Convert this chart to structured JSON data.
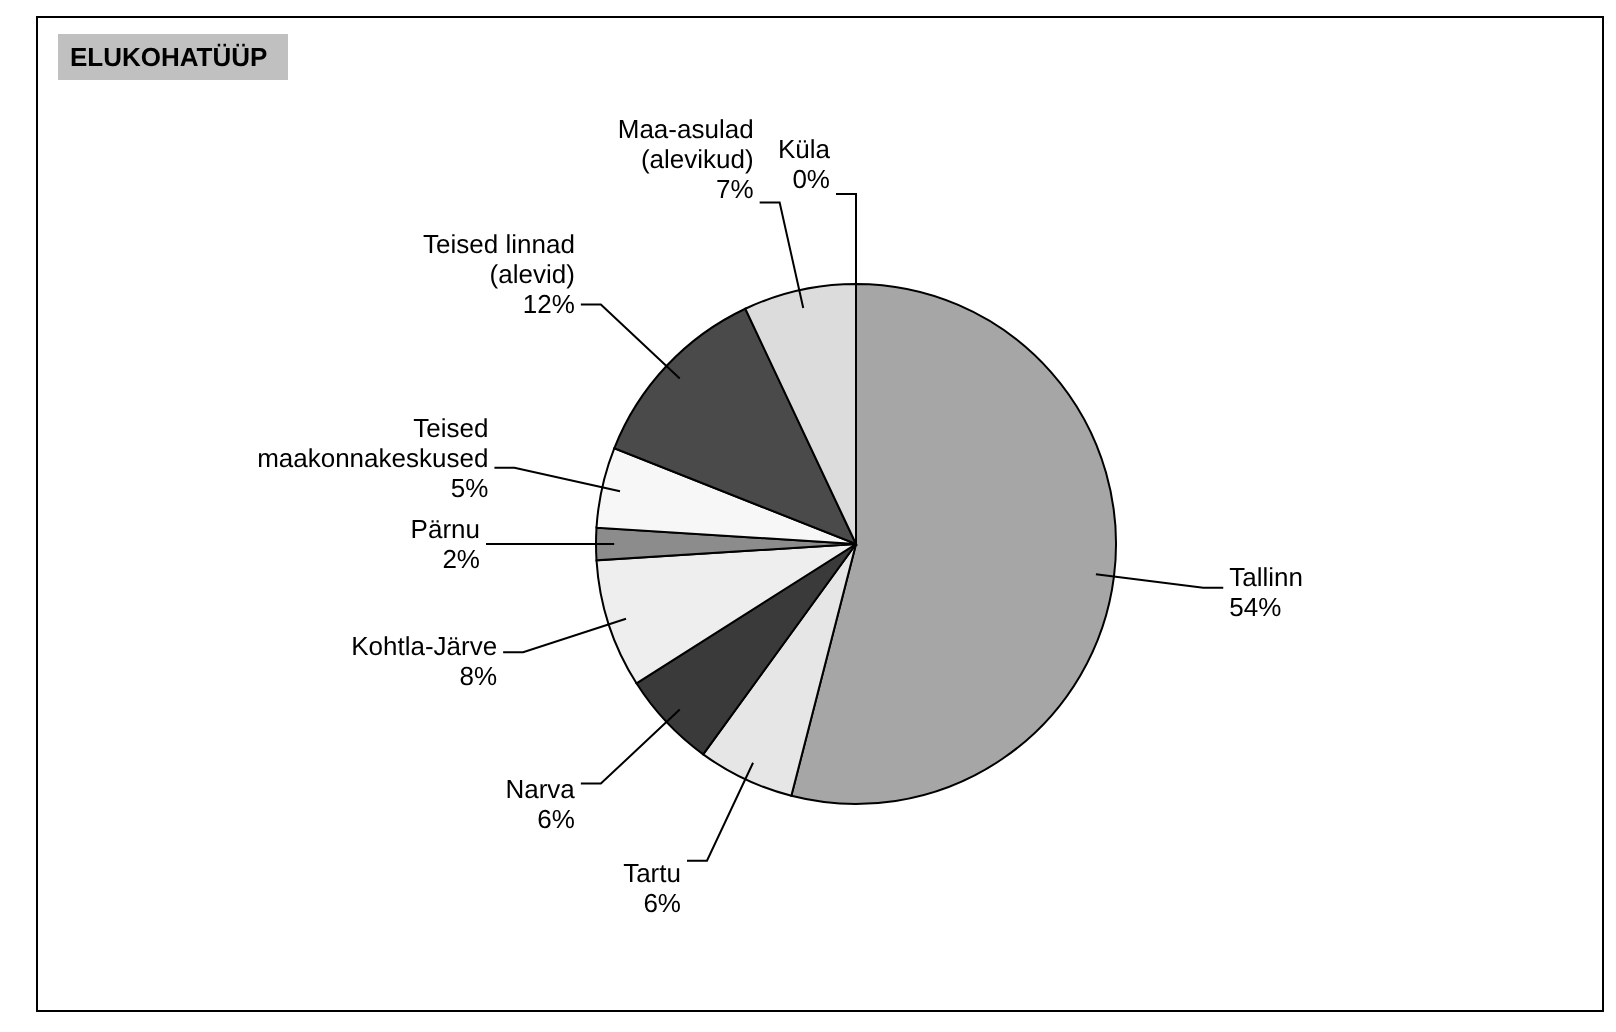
{
  "chart_data": {
    "type": "pie",
    "title": "ELUKOHATÜÜP",
    "categories": [
      "Tallinn",
      "Tartu",
      "Narva",
      "Kohtla-Järve",
      "Pärnu",
      "Teised maakonnakeskused",
      "Teised linnad (alevid)",
      "Maa-asulad (alevikud)",
      "Küla"
    ],
    "values": [
      54,
      6,
      6,
      8,
      2,
      5,
      12,
      7,
      0
    ],
    "value_labels": [
      "54%",
      "6%",
      "6%",
      "8%",
      "2%",
      "5%",
      "12%",
      "7%",
      "0%"
    ],
    "colors": [
      "#a6a6a6",
      "#e6e6e6",
      "#3a3a3a",
      "#eeeeee",
      "#8c8c8c",
      "#f7f7f7",
      "#4a4a4a",
      "#dcdcdc",
      "#ffffff"
    ],
    "legend": false
  }
}
